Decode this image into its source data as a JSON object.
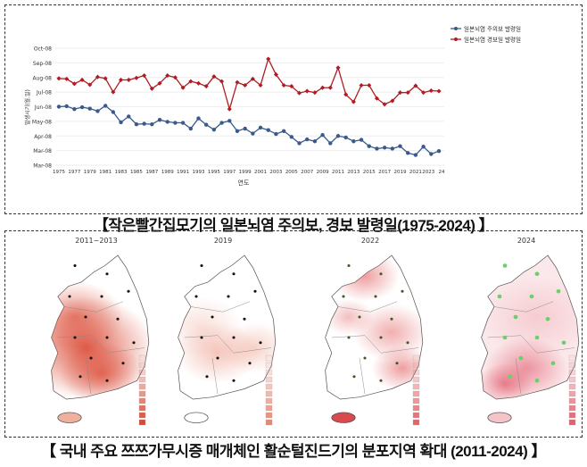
{
  "top_caption": "【작은빨간집모기의 일본뇌염 주의보, 경보 발령일(1975-2024) 】",
  "bottom_caption": "【 국내 주요 쯔쯔가무시증 매개체인 활순털진드기의 분포지역 확대 (2011-2024) 】",
  "chart_data": {
    "type": "line",
    "title": "",
    "xlabel": "연도",
    "ylabel": "발생시기(월.일)",
    "x": [
      1975,
      1976,
      1977,
      1978,
      1979,
      1980,
      1981,
      1982,
      1983,
      1984,
      1985,
      1986,
      1987,
      1988,
      1989,
      1990,
      1991,
      1992,
      1993,
      1994,
      1995,
      1996,
      1997,
      1998,
      1999,
      2000,
      2001,
      2002,
      2003,
      2004,
      2005,
      2006,
      2007,
      2008,
      2009,
      2010,
      2011,
      2012,
      2013,
      2014,
      2015,
      2016,
      2017,
      2018,
      2019,
      2020,
      2021,
      2022,
      2023,
      2024
    ],
    "x_tick_labels": [
      "1975",
      "1977",
      "1979",
      "1981",
      "1983",
      "1985",
      "1987",
      "1989",
      "1991",
      "1993",
      "1995",
      "1997",
      "1999",
      "2001",
      "2003",
      "2005",
      "2007",
      "2009",
      "2011",
      "2013",
      "2015",
      "2017",
      "2019",
      "2021",
      "2023",
      "24"
    ],
    "y_ticks": [
      {
        "date": "2008-03-01",
        "label": "Mar-08"
      },
      {
        "date": "2008-03-31",
        "label": "Mar-08"
      },
      {
        "date": "2008-04-30",
        "label": "Apr-08"
      },
      {
        "date": "2008-05-30",
        "label": "May-08"
      },
      {
        "date": "2008-06-29",
        "label": "Jun-08"
      },
      {
        "date": "2008-07-29",
        "label": "Jul-08"
      },
      {
        "date": "2008-08-28",
        "label": "Aug-08"
      },
      {
        "date": "2008-09-27",
        "label": "Sep-08"
      },
      {
        "date": "2008-10-27",
        "label": "Oct-08"
      }
    ],
    "ylim": [
      "2008-03-01",
      "2008-10-27"
    ],
    "grid": true,
    "legend_position": "top-right",
    "series": [
      {
        "name": "일본뇌염 주의보 발령일",
        "color": "#3a5a8c",
        "values": [
          "06-29",
          "06-30",
          "06-24",
          "06-28",
          "06-25",
          "06-20",
          "07-01",
          "06-18",
          "05-28",
          "06-09",
          "05-24",
          "05-25",
          "05-24",
          "06-02",
          "05-29",
          "05-27",
          "05-27",
          "05-15",
          "06-05",
          "05-23",
          "05-13",
          "05-27",
          "05-31",
          "05-10",
          "05-15",
          "05-05",
          "05-17",
          "05-12",
          "05-04",
          "05-10",
          "04-28",
          "04-15",
          "04-23",
          "04-19",
          "05-02",
          "04-15",
          "04-30",
          "04-27",
          "04-19",
          "04-22",
          "04-09",
          "04-04",
          "04-06",
          "04-04",
          "04-09",
          "03-26",
          "03-22",
          "04-08",
          "03-24",
          "03-30"
        ]
      },
      {
        "name": "일본뇌염 경보일 발령일",
        "color": "#b01c22",
        "values": [
          "08-26",
          "08-25",
          "08-15",
          "08-23",
          "08-13",
          "08-29",
          "08-26",
          "07-29",
          "08-23",
          "08-23",
          "08-27",
          "09-01",
          "08-05",
          "08-16",
          "09-01",
          "08-28",
          "08-07",
          "08-20",
          "08-16",
          "08-10",
          "08-30",
          "08-20",
          "06-24",
          "08-18",
          "08-12",
          "08-25",
          "08-12",
          "10-05",
          "09-03",
          "08-12",
          "08-10",
          "07-27",
          "07-31",
          "07-28",
          "08-07",
          "08-07",
          "09-17",
          "07-24",
          "07-09",
          "08-12",
          "08-12",
          "07-16",
          "07-04",
          "07-11",
          "07-28",
          "07-28",
          "08-11",
          "07-28",
          "08-01",
          "07-31"
        ]
      }
    ]
  },
  "maps": [
    {
      "title": "2011~2013",
      "color": "#d9402a",
      "marker_color": "#111111"
    },
    {
      "title": "2019",
      "color": "#e8826a",
      "marker_color": "#111111"
    },
    {
      "title": "2022",
      "color": "#e35d60",
      "marker_color": "#3d5a2a"
    },
    {
      "title": "2024",
      "color": "#e0586a",
      "marker_color": "#6ccf6a"
    }
  ]
}
